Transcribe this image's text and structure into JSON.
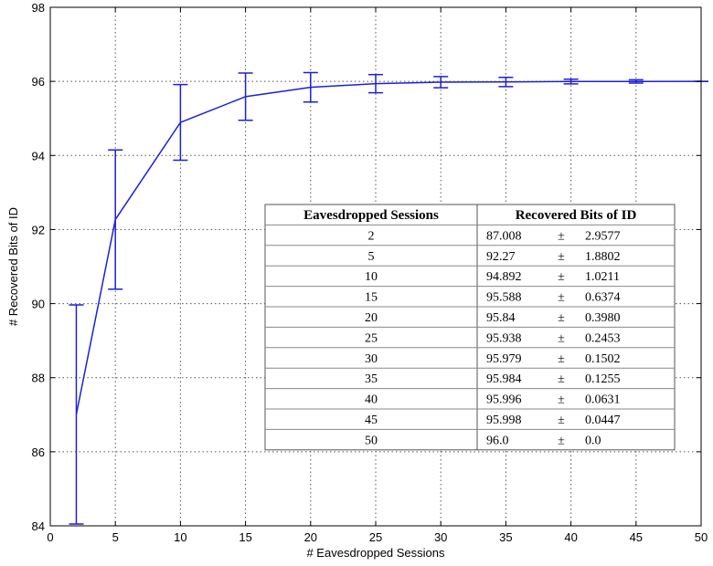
{
  "chart_data": {
    "type": "line",
    "title": "",
    "xlabel": "# Eavesdropped Sessions",
    "ylabel": "# Recovered Bits of ID",
    "xlim": [
      0,
      50
    ],
    "ylim": [
      84,
      98
    ],
    "xticks": [
      0,
      5,
      10,
      15,
      20,
      25,
      30,
      35,
      40,
      45,
      50
    ],
    "yticks": [
      84,
      86,
      88,
      90,
      92,
      94,
      96,
      98
    ],
    "grid": true,
    "line_color": "#1f1fd6",
    "series": [
      {
        "x": [
          2,
          5,
          10,
          15,
          20,
          25,
          30,
          35,
          40,
          45,
          50
        ],
        "y": [
          87.008,
          92.27,
          94.892,
          95.588,
          95.84,
          95.938,
          95.979,
          95.984,
          95.996,
          95.998,
          96.0
        ],
        "error": [
          2.9577,
          1.8802,
          1.0211,
          0.6374,
          0.398,
          0.2453,
          0.1502,
          0.1255,
          0.0631,
          0.0447,
          0.0
        ]
      }
    ],
    "table": {
      "headers": [
        "Eavesdropped Sessions",
        "Recovered Bits of ID"
      ],
      "pm": "±",
      "rows": [
        [
          "2",
          "87.008",
          "2.9577"
        ],
        [
          "5",
          "92.27",
          "1.8802"
        ],
        [
          "10",
          "94.892",
          "1.0211"
        ],
        [
          "15",
          "95.588",
          "0.6374"
        ],
        [
          "20",
          "95.84",
          "0.3980"
        ],
        [
          "25",
          "95.938",
          "0.2453"
        ],
        [
          "30",
          "95.979",
          "0.1502"
        ],
        [
          "35",
          "95.984",
          "0.1255"
        ],
        [
          "40",
          "95.996",
          "0.0631"
        ],
        [
          "45",
          "95.998",
          "0.0447"
        ],
        [
          "50",
          "96.0",
          "0.0"
        ]
      ]
    }
  }
}
